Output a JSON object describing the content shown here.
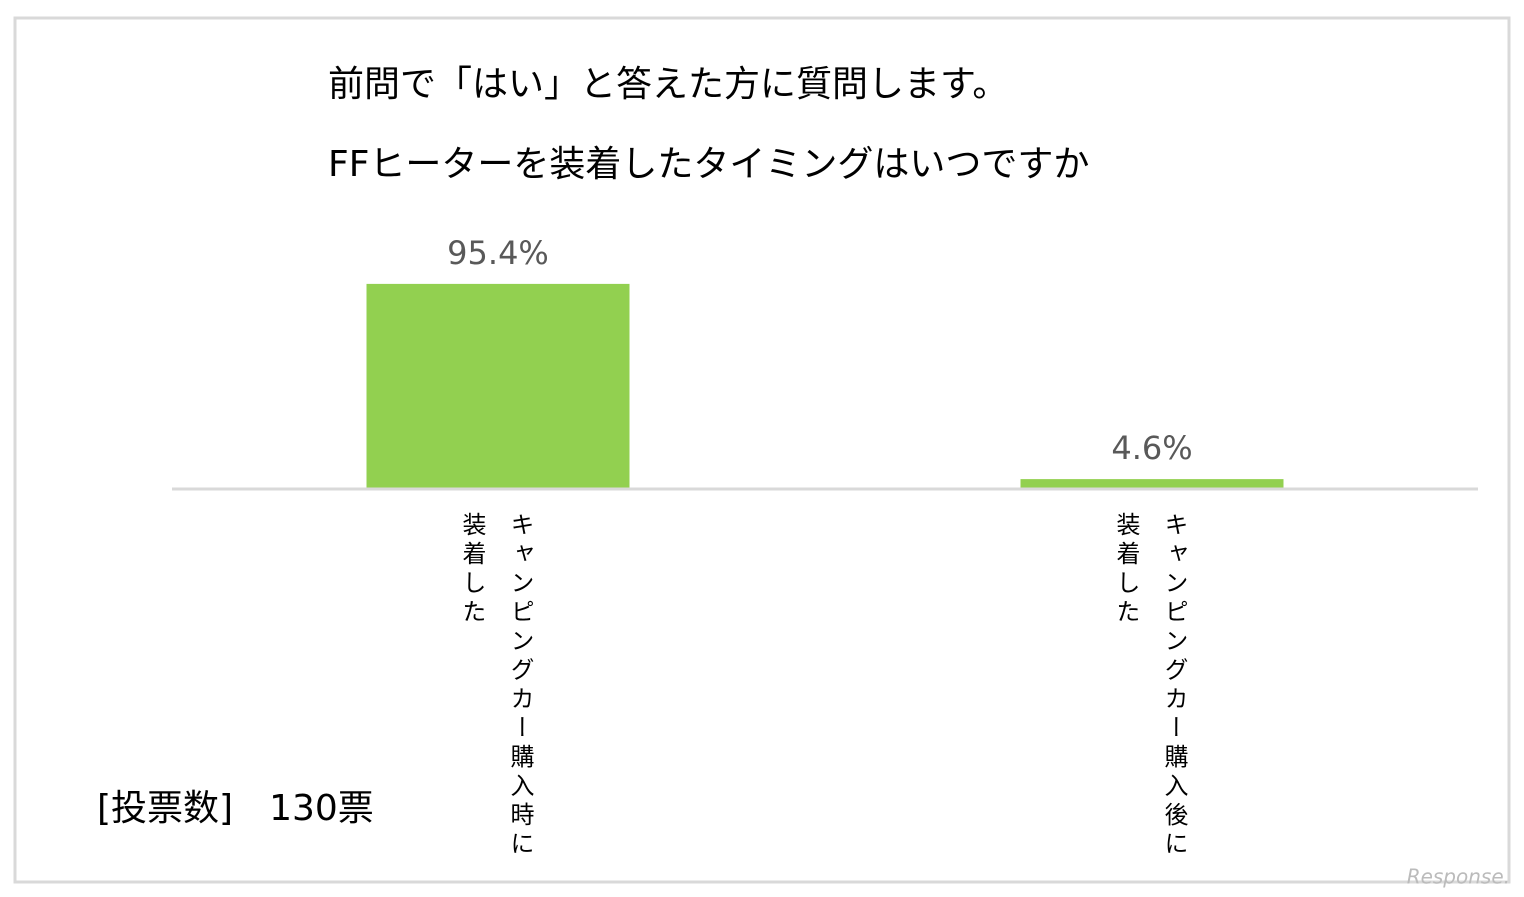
{
  "chart_data": {
    "type": "bar",
    "title": "前問で「はい」と答えた方に質問します。",
    "subtitle": "FFヒーターを装着したタイミングはいつですか",
    "categories": [
      "キャンピングカー購入時に装着した",
      "キャンピングカー購入後に装着した"
    ],
    "values": [
      95.4,
      4.6
    ],
    "value_labels": [
      "95.4%",
      "4.6%"
    ],
    "color": "#92d050",
    "note": "[投票数]　130票",
    "watermark": "Response."
  }
}
